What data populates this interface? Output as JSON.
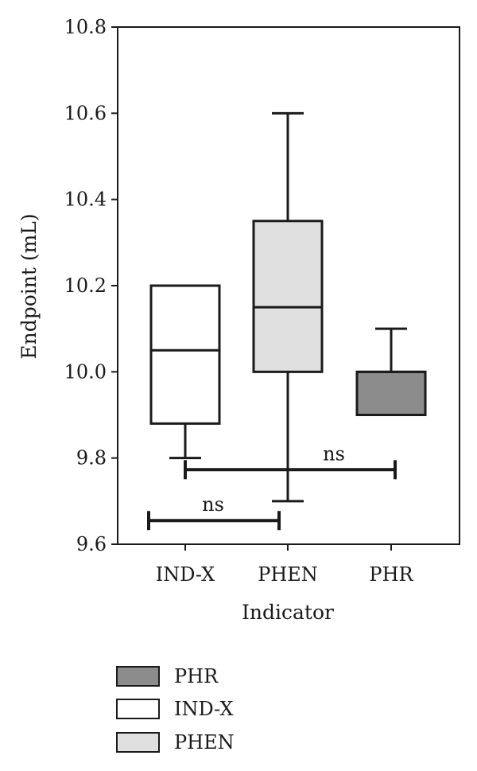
{
  "chart_data": {
    "type": "box",
    "xlabel": "Indicator",
    "ylabel": "Endpoint (mL)",
    "ylim": [
      9.6,
      10.8
    ],
    "yticks": [
      "9.6",
      "9.8",
      "10.0",
      "10.2",
      "10.4",
      "10.6",
      "10.8"
    ],
    "categories": [
      "IND-X",
      "PHEN",
      "PHR"
    ],
    "boxes": [
      {
        "name": "IND-X",
        "min": 9.8,
        "q1": 9.88,
        "median": 10.05,
        "q3": 10.2,
        "max": 10.2,
        "color": "#ffffff"
      },
      {
        "name": "PHEN",
        "min": 9.7,
        "q1": 10.0,
        "median": 10.15,
        "q3": 10.35,
        "max": 10.6,
        "color": "#e0e0e0"
      },
      {
        "name": "PHR",
        "min": 9.9,
        "q1": 9.9,
        "median": 10.0,
        "q3": 10.0,
        "max": 10.1,
        "color": "#8c8c8c"
      }
    ],
    "significance": [
      {
        "label": "ns",
        "from": "IND-X",
        "to": "PHR",
        "y": 9.773
      },
      {
        "label": "ns",
        "from": "IND-X",
        "to": "PHEN",
        "y": 9.655
      }
    ],
    "legend": {
      "position": "bottom-left",
      "entries": [
        {
          "label": "PHR",
          "color": "#8c8c8c"
        },
        {
          "label": "IND-X",
          "color": "#ffffff"
        },
        {
          "label": "PHEN",
          "color": "#e0e0e0"
        }
      ]
    },
    "grid": false
  }
}
